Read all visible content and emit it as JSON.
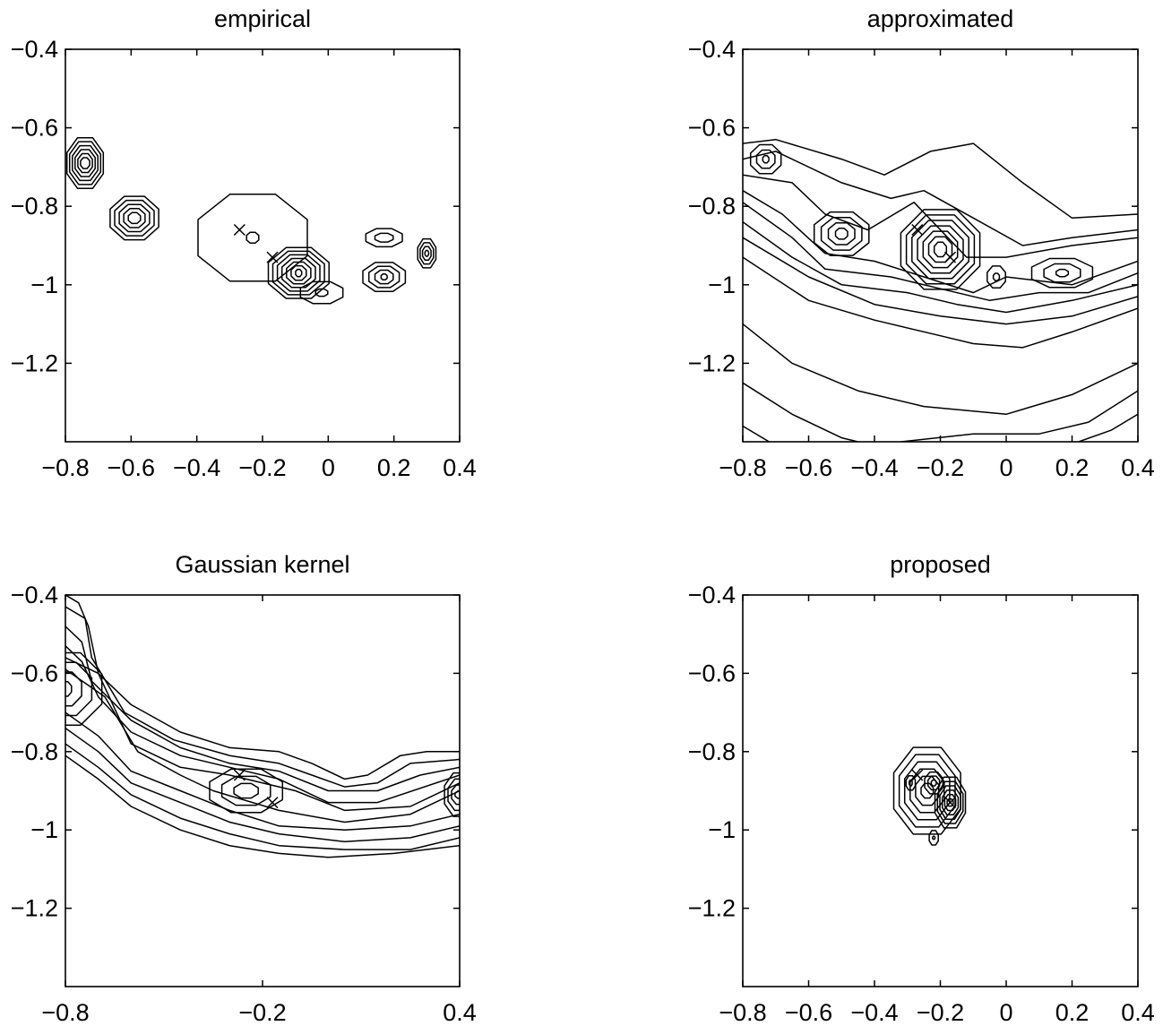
{
  "chart_data": [
    {
      "type": "contour",
      "title": "empirical",
      "xlim": [
        -0.8,
        0.4
      ],
      "ylim": [
        -1.4,
        -0.4
      ],
      "xticks": [
        -0.8,
        -0.6,
        -0.4,
        -0.2,
        0,
        0.2,
        0.4
      ],
      "xtick_labels": [
        "−0.8",
        "−0.6",
        "−0.4",
        "−0.2",
        "0",
        "0.2",
        "0.4"
      ],
      "yticks": [
        -0.4,
        -0.6,
        -0.8,
        -1,
        -1.2
      ],
      "ytick_labels": [
        "−0.4",
        "−0.6",
        "−0.8",
        "−1",
        "−1.2"
      ],
      "markers": [
        {
          "x": -0.27,
          "y": -0.86
        },
        {
          "x": -0.17,
          "y": -0.93
        }
      ],
      "peaks": [
        {
          "x": -0.74,
          "y": -0.69,
          "levels": 6,
          "rx0": 0.015,
          "ry0": 0.015,
          "rx1": 0.06,
          "ry1": 0.07
        },
        {
          "x": -0.59,
          "y": -0.83,
          "levels": 5,
          "rx0": 0.02,
          "ry0": 0.015,
          "rx1": 0.08,
          "ry1": 0.06
        },
        {
          "x": -0.23,
          "y": -0.88,
          "levels": 2,
          "rx0": 0.02,
          "ry0": 0.015,
          "rx1": 0.18,
          "ry1": 0.12
        },
        {
          "x": -0.09,
          "y": -0.97,
          "levels": 7,
          "rx0": 0.01,
          "ry0": 0.01,
          "rx1": 0.1,
          "ry1": 0.07
        },
        {
          "x": -0.02,
          "y": -1.02,
          "levels": 2,
          "rx0": 0.02,
          "ry0": 0.01,
          "rx1": 0.07,
          "ry1": 0.03
        },
        {
          "x": 0.17,
          "y": -0.88,
          "levels": 2,
          "rx0": 0.03,
          "ry0": 0.012,
          "rx1": 0.06,
          "ry1": 0.025
        },
        {
          "x": 0.17,
          "y": -0.98,
          "levels": 4,
          "rx0": 0.01,
          "ry0": 0.008,
          "rx1": 0.07,
          "ry1": 0.04
        },
        {
          "x": 0.3,
          "y": -0.92,
          "levels": 4,
          "rx0": 0.006,
          "ry0": 0.008,
          "rx1": 0.03,
          "ry1": 0.04
        }
      ]
    },
    {
      "type": "contour",
      "title": "approximated",
      "xlim": [
        -0.8,
        0.4
      ],
      "ylim": [
        -1.4,
        -0.4
      ],
      "xticks": [
        -0.8,
        -0.6,
        -0.4,
        -0.2,
        0,
        0.2,
        0.4
      ],
      "xtick_labels": [
        "−0.8",
        "−0.6",
        "−0.4",
        "−0.2",
        "0",
        "0.2",
        "0.4"
      ],
      "yticks": [
        -0.4,
        -0.6,
        -0.8,
        -1,
        -1.2
      ],
      "ytick_labels": [
        "−0.4",
        "−0.6",
        "−0.8",
        "−1",
        "−1.2"
      ],
      "markers": [
        {
          "x": -0.27,
          "y": -0.86
        },
        {
          "x": -0.17,
          "y": -0.93
        }
      ],
      "peaks": [
        {
          "x": -0.73,
          "y": -0.68,
          "levels": 3,
          "rx0": 0.01,
          "ry0": 0.01,
          "rx1": 0.05,
          "ry1": 0.04
        },
        {
          "x": -0.5,
          "y": -0.87,
          "levels": 4,
          "rx0": 0.02,
          "ry0": 0.015,
          "rx1": 0.09,
          "ry1": 0.06
        },
        {
          "x": -0.2,
          "y": -0.91,
          "levels": 7,
          "rx0": 0.02,
          "ry0": 0.02,
          "rx1": 0.13,
          "ry1": 0.11
        },
        {
          "x": -0.03,
          "y": -0.98,
          "levels": 2,
          "rx0": 0.01,
          "ry0": 0.01,
          "rx1": 0.03,
          "ry1": 0.03
        },
        {
          "x": 0.17,
          "y": -0.97,
          "levels": 3,
          "rx0": 0.02,
          "ry0": 0.01,
          "rx1": 0.1,
          "ry1": 0.04
        }
      ],
      "bands": [
        [
          [
            -0.8,
            -0.64
          ],
          [
            -0.7,
            -0.63
          ],
          [
            -0.5,
            -0.68
          ],
          [
            -0.37,
            -0.72
          ],
          [
            -0.23,
            -0.66
          ],
          [
            -0.1,
            -0.64
          ],
          [
            0.05,
            -0.74
          ],
          [
            0.2,
            -0.83
          ],
          [
            0.4,
            -0.82
          ]
        ],
        [
          [
            -0.8,
            -0.68
          ],
          [
            -0.7,
            -0.66
          ],
          [
            -0.5,
            -0.74
          ],
          [
            -0.35,
            -0.78
          ],
          [
            -0.25,
            -0.76
          ],
          [
            -0.1,
            -0.83
          ],
          [
            0.05,
            -0.9
          ],
          [
            0.2,
            -0.88
          ],
          [
            0.4,
            -0.86
          ]
        ],
        [
          [
            -0.8,
            -0.72
          ],
          [
            -0.65,
            -0.74
          ],
          [
            -0.55,
            -0.82
          ],
          [
            -0.42,
            -0.86
          ],
          [
            -0.28,
            -0.79
          ],
          [
            -0.12,
            -0.93
          ],
          [
            0.0,
            -0.93
          ],
          [
            0.2,
            -0.9
          ],
          [
            0.4,
            -0.88
          ]
        ],
        [
          [
            -0.8,
            -0.76
          ],
          [
            -0.68,
            -0.82
          ],
          [
            -0.55,
            -0.92
          ],
          [
            -0.4,
            -0.94
          ],
          [
            -0.25,
            -0.98
          ],
          [
            -0.1,
            -1.02
          ],
          [
            0.0,
            -0.98
          ],
          [
            0.2,
            -1.0
          ],
          [
            0.4,
            -0.94
          ]
        ],
        [
          [
            -0.8,
            -0.79
          ],
          [
            -0.65,
            -0.88
          ],
          [
            -0.55,
            -0.96
          ],
          [
            -0.35,
            -0.98
          ],
          [
            -0.2,
            -1.01
          ],
          [
            -0.05,
            -1.04
          ],
          [
            0.1,
            -1.02
          ],
          [
            0.25,
            -1.02
          ],
          [
            0.4,
            -0.97
          ]
        ],
        [
          [
            -0.8,
            -0.84
          ],
          [
            -0.65,
            -0.93
          ],
          [
            -0.5,
            -1.0
          ],
          [
            -0.3,
            -1.02
          ],
          [
            -0.15,
            -1.05
          ],
          [
            0.0,
            -1.07
          ],
          [
            0.2,
            -1.04
          ],
          [
            0.4,
            -1.0
          ]
        ],
        [
          [
            -0.8,
            -0.88
          ],
          [
            -0.6,
            -0.98
          ],
          [
            -0.4,
            -1.05
          ],
          [
            -0.2,
            -1.08
          ],
          [
            0.0,
            -1.1
          ],
          [
            0.2,
            -1.08
          ],
          [
            0.4,
            -1.03
          ]
        ],
        [
          [
            -0.8,
            -0.93
          ],
          [
            -0.6,
            -1.04
          ],
          [
            -0.4,
            -1.09
          ],
          [
            -0.2,
            -1.13
          ],
          [
            -0.1,
            -1.15
          ],
          [
            0.05,
            -1.16
          ],
          [
            0.2,
            -1.12
          ],
          [
            0.4,
            -1.06
          ]
        ],
        [
          [
            -0.8,
            -1.1
          ],
          [
            -0.65,
            -1.2
          ],
          [
            -0.45,
            -1.27
          ],
          [
            -0.25,
            -1.31
          ],
          [
            0.0,
            -1.33
          ],
          [
            0.2,
            -1.28
          ],
          [
            0.4,
            -1.2
          ]
        ],
        [
          [
            -0.8,
            -1.25
          ],
          [
            -0.65,
            -1.33
          ],
          [
            -0.5,
            -1.39
          ],
          [
            -0.45,
            -1.4
          ]
        ],
        [
          [
            -0.72,
            -1.4
          ],
          [
            -0.8,
            -1.36
          ]
        ],
        [
          [
            -0.32,
            -1.4
          ],
          [
            -0.1,
            -1.38
          ],
          [
            0.1,
            -1.38
          ],
          [
            0.25,
            -1.35
          ],
          [
            0.4,
            -1.27
          ]
        ],
        [
          [
            0.22,
            -1.4
          ],
          [
            0.32,
            -1.37
          ],
          [
            0.4,
            -1.33
          ]
        ]
      ]
    },
    {
      "type": "contour",
      "title": "Gaussian kernel",
      "xlim": [
        -0.8,
        0.4
      ],
      "ylim": [
        -1.4,
        -0.4
      ],
      "xticks": [
        -0.8,
        -0.2,
        0.4
      ],
      "xtick_labels": [
        "−0.8",
        "−0.2",
        "0.4"
      ],
      "yticks": [
        -0.4,
        -0.6,
        -0.8,
        -1,
        -1.2
      ],
      "ytick_labels": [
        "−0.4",
        "−0.6",
        "−0.8",
        "−1",
        "−1.2"
      ],
      "markers": [
        {
          "x": -0.27,
          "y": -0.86
        },
        {
          "x": -0.17,
          "y": -0.93
        }
      ],
      "peaks": [
        {
          "x": -0.8,
          "y": -0.64,
          "levels": 4,
          "rx0": 0.02,
          "ry0": 0.02,
          "rx1": 0.12,
          "ry1": 0.1
        },
        {
          "x": -0.25,
          "y": -0.9,
          "levels": 3,
          "rx0": 0.04,
          "ry0": 0.02,
          "rx1": 0.12,
          "ry1": 0.06
        },
        {
          "x": 0.4,
          "y": -0.91,
          "levels": 4,
          "rx0": 0.015,
          "ry0": 0.01,
          "rx1": 0.05,
          "ry1": 0.06
        }
      ],
      "bands": [
        [
          [
            -0.8,
            -0.4
          ],
          [
            -0.76,
            -0.42
          ],
          [
            -0.73,
            -0.48
          ],
          [
            -0.7,
            -0.6
          ],
          [
            -0.6,
            -0.68
          ],
          [
            -0.45,
            -0.75
          ],
          [
            -0.3,
            -0.79
          ],
          [
            -0.15,
            -0.8
          ],
          [
            -0.05,
            -0.83
          ],
          [
            0.05,
            -0.87
          ],
          [
            0.12,
            -0.86
          ],
          [
            0.22,
            -0.81
          ],
          [
            0.3,
            -0.8
          ],
          [
            0.4,
            -0.8
          ]
        ],
        [
          [
            -0.8,
            -0.43
          ],
          [
            -0.74,
            -0.46
          ],
          [
            -0.72,
            -0.56
          ],
          [
            -0.62,
            -0.7
          ],
          [
            -0.47,
            -0.77
          ],
          [
            -0.3,
            -0.81
          ],
          [
            -0.15,
            -0.83
          ],
          [
            -0.05,
            -0.86
          ],
          [
            0.05,
            -0.89
          ],
          [
            0.15,
            -0.88
          ],
          [
            0.25,
            -0.83
          ],
          [
            0.4,
            -0.82
          ]
        ],
        [
          [
            -0.8,
            -0.48
          ],
          [
            -0.75,
            -0.52
          ],
          [
            -0.72,
            -0.62
          ],
          [
            -0.6,
            -0.72
          ],
          [
            -0.45,
            -0.79
          ],
          [
            -0.3,
            -0.83
          ],
          [
            -0.15,
            -0.85
          ],
          [
            0.0,
            -0.9
          ],
          [
            0.15,
            -0.9
          ],
          [
            0.28,
            -0.86
          ],
          [
            0.4,
            -0.84
          ]
        ],
        [
          [
            -0.8,
            -0.53
          ],
          [
            -0.75,
            -0.57
          ],
          [
            -0.7,
            -0.66
          ],
          [
            -0.6,
            -0.75
          ],
          [
            -0.45,
            -0.81
          ],
          [
            -0.3,
            -0.84
          ],
          [
            -0.15,
            -0.87
          ],
          [
            0.0,
            -0.93
          ],
          [
            0.15,
            -0.93
          ],
          [
            0.4,
            -0.86
          ]
        ],
        [
          [
            -0.8,
            -0.56
          ],
          [
            -0.7,
            -0.6
          ],
          [
            -0.6,
            -0.78
          ],
          [
            -0.45,
            -0.84
          ],
          [
            -0.3,
            -0.86
          ],
          [
            -0.1,
            -0.9
          ],
          [
            0.05,
            -0.95
          ],
          [
            0.25,
            -0.94
          ],
          [
            0.4,
            -0.88
          ]
        ],
        [
          [
            -0.8,
            -0.59
          ],
          [
            -0.68,
            -0.66
          ],
          [
            -0.58,
            -0.8
          ],
          [
            -0.45,
            -0.86
          ],
          [
            -0.35,
            -0.9
          ],
          [
            -0.15,
            -0.95
          ],
          [
            0.05,
            -0.98
          ],
          [
            0.25,
            -0.96
          ],
          [
            0.4,
            -0.9
          ]
        ],
        [
          [
            -0.8,
            -0.7
          ],
          [
            -0.7,
            -0.76
          ],
          [
            -0.6,
            -0.85
          ],
          [
            -0.45,
            -0.9
          ],
          [
            -0.3,
            -0.95
          ],
          [
            -0.15,
            -0.99
          ],
          [
            0.05,
            -1.0
          ],
          [
            0.25,
            -0.99
          ],
          [
            0.4,
            -0.96
          ]
        ],
        [
          [
            -0.8,
            -0.74
          ],
          [
            -0.7,
            -0.8
          ],
          [
            -0.6,
            -0.88
          ],
          [
            -0.45,
            -0.93
          ],
          [
            -0.3,
            -0.98
          ],
          [
            -0.15,
            -1.01
          ],
          [
            0.05,
            -1.03
          ],
          [
            0.25,
            -1.02
          ],
          [
            0.4,
            -0.99
          ]
        ],
        [
          [
            -0.8,
            -0.78
          ],
          [
            -0.7,
            -0.84
          ],
          [
            -0.6,
            -0.91
          ],
          [
            -0.45,
            -0.97
          ],
          [
            -0.3,
            -1.01
          ],
          [
            -0.15,
            -1.04
          ],
          [
            0.05,
            -1.05
          ],
          [
            0.25,
            -1.05
          ],
          [
            0.4,
            -1.02
          ]
        ],
        [
          [
            -0.8,
            -0.81
          ],
          [
            -0.7,
            -0.87
          ],
          [
            -0.6,
            -0.94
          ],
          [
            -0.45,
            -1.0
          ],
          [
            -0.3,
            -1.04
          ],
          [
            -0.15,
            -1.06
          ],
          [
            0.0,
            -1.07
          ],
          [
            0.2,
            -1.06
          ],
          [
            0.4,
            -1.04
          ]
        ]
      ]
    },
    {
      "type": "contour",
      "title": "proposed",
      "xlim": [
        -0.8,
        0.4
      ],
      "ylim": [
        -1.4,
        -0.4
      ],
      "xticks": [
        -0.8,
        -0.6,
        -0.4,
        -0.2,
        0,
        0.2,
        0.4
      ],
      "xtick_labels": [
        "−0.8",
        "−0.6",
        "−0.4",
        "−0.2",
        "0",
        "0.2",
        "0.4"
      ],
      "yticks": [
        -0.4,
        -0.6,
        -0.8,
        -1,
        -1.2
      ],
      "ytick_labels": [
        "−0.4",
        "−0.6",
        "−0.8",
        "−1",
        "−1.2"
      ],
      "markers": [
        {
          "x": -0.27,
          "y": -0.86
        },
        {
          "x": -0.17,
          "y": -0.93
        }
      ],
      "peaks": [
        {
          "x": -0.24,
          "y": -0.9,
          "levels": 6,
          "rx0": 0.02,
          "ry0": 0.02,
          "rx1": 0.11,
          "ry1": 0.12
        },
        {
          "x": -0.22,
          "y": -0.88,
          "levels": 3,
          "rx0": 0.008,
          "ry0": 0.008,
          "rx1": 0.03,
          "ry1": 0.03
        },
        {
          "x": -0.17,
          "y": -0.93,
          "levels": 6,
          "rx0": 0.01,
          "ry0": 0.01,
          "rx1": 0.05,
          "ry1": 0.07
        },
        {
          "x": -0.29,
          "y": -0.88,
          "levels": 2,
          "rx0": 0.005,
          "ry0": 0.008,
          "rx1": 0.015,
          "ry1": 0.02
        },
        {
          "x": -0.22,
          "y": -1.02,
          "levels": 2,
          "rx0": 0.004,
          "ry0": 0.004,
          "rx1": 0.015,
          "ry1": 0.02
        }
      ]
    }
  ]
}
